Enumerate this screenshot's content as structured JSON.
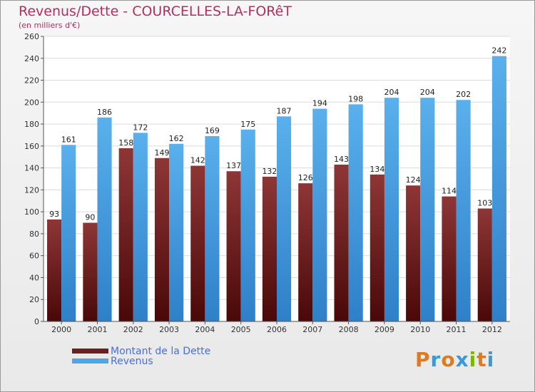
{
  "header": {
    "title": "Revenus/Dette - COURCELLES-LA-FORêT",
    "subtitle": "(en milliers d'€)"
  },
  "legend": [
    {
      "label": "Montant de la Dette",
      "color": "#6b1f1f"
    },
    {
      "label": "Revenus",
      "color": "#4ea6e6"
    }
  ],
  "logo": {
    "text": "Proxiti",
    "letter_colors": [
      "#e07a20",
      "#3a9ad9",
      "#e07a20",
      "#3a9ad9",
      "#7ab800",
      "#e07a20",
      "#3a9ad9"
    ]
  },
  "chart_data": {
    "type": "bar",
    "categories": [
      "2000",
      "2001",
      "2002",
      "2003",
      "2004",
      "2005",
      "2006",
      "2007",
      "2008",
      "2009",
      "2010",
      "2011",
      "2012"
    ],
    "series": [
      {
        "name": "Montant de la Dette",
        "values": [
          93,
          90,
          158,
          149,
          142,
          137,
          132,
          126,
          143,
          134,
          124,
          114,
          103
        ]
      },
      {
        "name": "Revenus",
        "values": [
          161,
          186,
          172,
          162,
          169,
          175,
          187,
          194,
          198,
          204,
          204,
          202,
          242
        ]
      }
    ],
    "ylim": [
      0,
      260
    ],
    "yticks": [
      0,
      20,
      40,
      60,
      80,
      100,
      120,
      140,
      160,
      180,
      200,
      220,
      240,
      260
    ],
    "grid": true,
    "legend_position": "bottom-left"
  }
}
